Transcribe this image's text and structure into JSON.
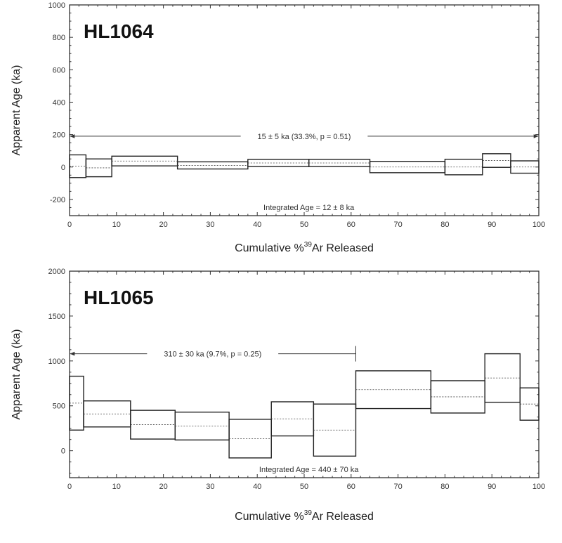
{
  "chart_data": [
    {
      "type": "step",
      "sample": "HL1064",
      "xlabel": "Cumulative %",
      "xlabel_sup": "39",
      "xlabel_tail": "Ar Released",
      "ylabel": "Apparent Age (ka)",
      "xlim": [
        0,
        100
      ],
      "ylim": [
        -300,
        1000
      ],
      "xticks": [
        0,
        10,
        20,
        30,
        40,
        50,
        60,
        70,
        80,
        90,
        100
      ],
      "yticks": [
        -200,
        0,
        200,
        400,
        600,
        800,
        1000
      ],
      "steps": [
        {
          "x0": 0,
          "x1": 3.5,
          "age": 5,
          "err": 70
        },
        {
          "x0": 3.5,
          "x1": 9,
          "age": -5,
          "err": 55
        },
        {
          "x0": 9,
          "x1": 23,
          "age": 37,
          "err": 30
        },
        {
          "x0": 23,
          "x1": 38,
          "age": 10,
          "err": 22
        },
        {
          "x0": 38,
          "x1": 51,
          "age": 25,
          "err": 22
        },
        {
          "x0": 51,
          "x1": 64,
          "age": 25,
          "err": 22
        },
        {
          "x0": 64,
          "x1": 80,
          "age": 0,
          "err": 35
        },
        {
          "x0": 80,
          "x1": 88,
          "age": 0,
          "err": 48
        },
        {
          "x0": 88,
          "x1": 94,
          "age": 40,
          "err": 42
        },
        {
          "x0": 94,
          "x1": 100,
          "age": 0,
          "err": 38
        }
      ],
      "plateau": {
        "x0": 0,
        "x1": 100,
        "y": 190,
        "label": "15 ± 5 ka (33.3%, p = 0.51)",
        "arrow_end": true
      },
      "integrated_age": "Integrated Age = 12 ± 8 ka"
    },
    {
      "type": "step",
      "sample": "HL1065",
      "xlabel": "Cumulative %",
      "xlabel_sup": "39",
      "xlabel_tail": "Ar Released",
      "ylabel": "Apparent Age (ka)",
      "xlim": [
        0,
        100
      ],
      "ylim": [
        -300,
        2000
      ],
      "xticks": [
        0,
        10,
        20,
        30,
        40,
        50,
        60,
        70,
        80,
        90,
        100
      ],
      "yticks": [
        0,
        500,
        1000,
        1500,
        2000
      ],
      "steps": [
        {
          "x0": 0,
          "x1": 3,
          "age": 530,
          "err": 300
        },
        {
          "x0": 3,
          "x1": 13,
          "age": 410,
          "err": 145
        },
        {
          "x0": 13,
          "x1": 22.5,
          "age": 290,
          "err": 160
        },
        {
          "x0": 22.5,
          "x1": 34,
          "age": 275,
          "err": 155
        },
        {
          "x0": 34,
          "x1": 43,
          "age": 135,
          "err": 215
        },
        {
          "x0": 43,
          "x1": 52,
          "age": 355,
          "err": 190
        },
        {
          "x0": 52,
          "x1": 61,
          "age": 230,
          "err": 290
        },
        {
          "x0": 61,
          "x1": 77,
          "age": 680,
          "err": 210
        },
        {
          "x0": 77,
          "x1": 88.5,
          "age": 600,
          "err": 180
        },
        {
          "x0": 88.5,
          "x1": 96,
          "age": 810,
          "err": 270
        },
        {
          "x0": 96,
          "x1": 100,
          "age": 520,
          "err": 180
        }
      ],
      "plateau": {
        "x0": 0,
        "x1": 61,
        "y": 1080,
        "label": "310 ± 30 ka (9.7%, p = 0.25)",
        "arrow_end": false
      },
      "integrated_age": "Integrated Age = 440 ± 70 ka"
    }
  ]
}
